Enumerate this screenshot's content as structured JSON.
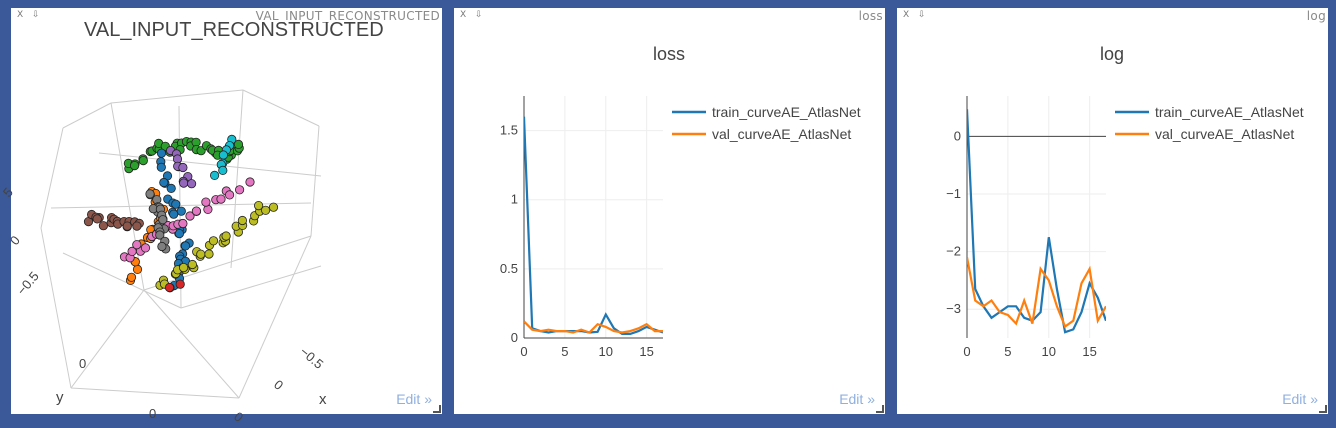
{
  "windows": [
    {
      "id": "w1",
      "window_title": "VAL_INPUT_RECONSTRUCTED",
      "close_label": "X",
      "pin_label": "⇩",
      "edit_label": "Edit »"
    },
    {
      "id": "w2",
      "window_title": "loss",
      "close_label": "X",
      "pin_label": "⇩",
      "edit_label": "Edit »"
    },
    {
      "id": "w3",
      "window_title": "log",
      "close_label": "X",
      "pin_label": "⇩",
      "edit_label": "Edit »"
    }
  ],
  "chart_data": [
    {
      "type": "scatter3d",
      "title": "VAL_INPUT_RECONSTRUCTED",
      "axis_tick_labels": [
        "5",
        "0",
        "−0.5",
        "0",
        "−0.5",
        "0",
        "0",
        "0"
      ],
      "xlabel": "x",
      "ylabel": "y",
      "cluster_colors": [
        "#2ca02c",
        "#1f77b4",
        "#ff7f0e",
        "#e377c2",
        "#bcbd22",
        "#8c564b",
        "#7f7f7f",
        "#17becf",
        "#9467bd",
        "#d62728"
      ]
    },
    {
      "type": "line",
      "title": "loss",
      "xlim": [
        0,
        17
      ],
      "ylim": [
        0,
        1.75
      ],
      "xticks": [
        "0",
        "5",
        "10",
        "15"
      ],
      "yticks": [
        "0",
        "0.5",
        "1",
        "1.5"
      ],
      "legend_position": "top-right",
      "series": [
        {
          "name": "train_curveAE_AtlasNet",
          "color": "#1f77b4",
          "x": [
            0,
            1,
            2,
            3,
            4,
            5,
            6,
            7,
            8,
            9,
            10,
            11,
            12,
            13,
            14,
            15,
            16,
            17
          ],
          "y": [
            1.6,
            0.07,
            0.05,
            0.04,
            0.05,
            0.05,
            0.05,
            0.05,
            0.04,
            0.045,
            0.17,
            0.07,
            0.03,
            0.03,
            0.05,
            0.08,
            0.06,
            0.04
          ]
        },
        {
          "name": "val_curveAE_AtlasNet",
          "color": "#ff7f0e",
          "x": [
            0,
            1,
            2,
            3,
            4,
            5,
            6,
            7,
            8,
            9,
            10,
            11,
            12,
            13,
            14,
            15,
            16,
            17
          ],
          "y": [
            0.12,
            0.06,
            0.05,
            0.06,
            0.05,
            0.05,
            0.04,
            0.06,
            0.04,
            0.1,
            0.08,
            0.05,
            0.04,
            0.05,
            0.07,
            0.1,
            0.05,
            0.05
          ]
        }
      ]
    },
    {
      "type": "line",
      "title": "log",
      "xlim": [
        0,
        17
      ],
      "ylim": [
        -3.5,
        0.7
      ],
      "xticks": [
        "0",
        "5",
        "10",
        "15"
      ],
      "yticks": [
        "−3",
        "−2",
        "−1",
        "0"
      ],
      "zero_line": true,
      "legend_position": "top-right",
      "series": [
        {
          "name": "train_curveAE_AtlasNet",
          "color": "#1f77b4",
          "x": [
            0,
            1,
            2,
            3,
            4,
            5,
            6,
            7,
            8,
            9,
            10,
            11,
            12,
            13,
            14,
            15,
            16,
            17
          ],
          "y": [
            0.47,
            -2.65,
            -2.95,
            -3.15,
            -3.05,
            -2.95,
            -2.95,
            -3.15,
            -3.2,
            -3.05,
            -1.75,
            -2.65,
            -3.4,
            -3.35,
            -3.05,
            -2.55,
            -2.8,
            -3.2
          ]
        },
        {
          "name": "val_curveAE_AtlasNet",
          "color": "#ff7f0e",
          "x": [
            0,
            1,
            2,
            3,
            4,
            5,
            6,
            7,
            8,
            9,
            10,
            11,
            12,
            13,
            14,
            15,
            16,
            17
          ],
          "y": [
            -2.1,
            -2.85,
            -2.95,
            -2.85,
            -3.05,
            -3.1,
            -3.25,
            -2.85,
            -3.25,
            -2.3,
            -2.5,
            -2.95,
            -3.3,
            -3.2,
            -2.55,
            -2.3,
            -3.2,
            -2.95
          ]
        }
      ]
    }
  ]
}
